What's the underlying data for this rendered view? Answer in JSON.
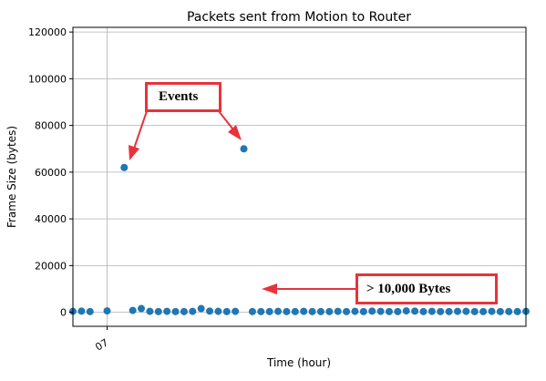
{
  "chart_data": {
    "type": "scatter",
    "title": "Packets sent from Motion to Router",
    "xlabel": "Time (hour)",
    "ylabel": "Frame Size (bytes)",
    "ylim": [
      -6000,
      122000
    ],
    "yticks": [
      0,
      20000,
      40000,
      60000,
      80000,
      100000,
      120000
    ],
    "ytick_labels": [
      "0",
      "20000",
      "40000",
      "60000",
      "80000",
      "100000",
      "120000"
    ],
    "xlim": [
      -4,
      49
    ],
    "xticks": [
      0
    ],
    "xtick_labels": [
      "07"
    ],
    "grid": true,
    "marker_color": "#1f77b4",
    "points": [
      {
        "x": -4,
        "y": 400
      },
      {
        "x": -3,
        "y": 500
      },
      {
        "x": -2,
        "y": 300
      },
      {
        "x": 0,
        "y": 600
      },
      {
        "x": 2,
        "y": 62000
      },
      {
        "x": 3,
        "y": 800
      },
      {
        "x": 4,
        "y": 1600
      },
      {
        "x": 5,
        "y": 400
      },
      {
        "x": 6,
        "y": 300
      },
      {
        "x": 7,
        "y": 400
      },
      {
        "x": 8,
        "y": 300
      },
      {
        "x": 9,
        "y": 300
      },
      {
        "x": 10,
        "y": 400
      },
      {
        "x": 11,
        "y": 1600
      },
      {
        "x": 12,
        "y": 500
      },
      {
        "x": 13,
        "y": 400
      },
      {
        "x": 14,
        "y": 300
      },
      {
        "x": 15,
        "y": 400
      },
      {
        "x": 16,
        "y": 70000
      },
      {
        "x": 17,
        "y": 300
      },
      {
        "x": 18,
        "y": 300
      },
      {
        "x": 19,
        "y": 300
      },
      {
        "x": 20,
        "y": 400
      },
      {
        "x": 21,
        "y": 300
      },
      {
        "x": 22,
        "y": 300
      },
      {
        "x": 23,
        "y": 400
      },
      {
        "x": 24,
        "y": 300
      },
      {
        "x": 25,
        "y": 300
      },
      {
        "x": 26,
        "y": 300
      },
      {
        "x": 27,
        "y": 400
      },
      {
        "x": 28,
        "y": 300
      },
      {
        "x": 29,
        "y": 400
      },
      {
        "x": 30,
        "y": 300
      },
      {
        "x": 31,
        "y": 500
      },
      {
        "x": 32,
        "y": 400
      },
      {
        "x": 33,
        "y": 300
      },
      {
        "x": 34,
        "y": 300
      },
      {
        "x": 35,
        "y": 600
      },
      {
        "x": 36,
        "y": 500
      },
      {
        "x": 37,
        "y": 300
      },
      {
        "x": 38,
        "y": 400
      },
      {
        "x": 39,
        "y": 300
      },
      {
        "x": 40,
        "y": 300
      },
      {
        "x": 41,
        "y": 400
      },
      {
        "x": 42,
        "y": 400
      },
      {
        "x": 43,
        "y": 300
      },
      {
        "x": 44,
        "y": 300
      },
      {
        "x": 45,
        "y": 400
      },
      {
        "x": 46,
        "y": 300
      },
      {
        "x": 47,
        "y": 300
      },
      {
        "x": 48,
        "y": 300
      },
      {
        "x": 49,
        "y": 400
      }
    ],
    "annotations": [
      {
        "text": "Events",
        "color": "#e8333a"
      },
      {
        "text": "> 10,000 Bytes",
        "color": "#e8333a"
      }
    ]
  }
}
